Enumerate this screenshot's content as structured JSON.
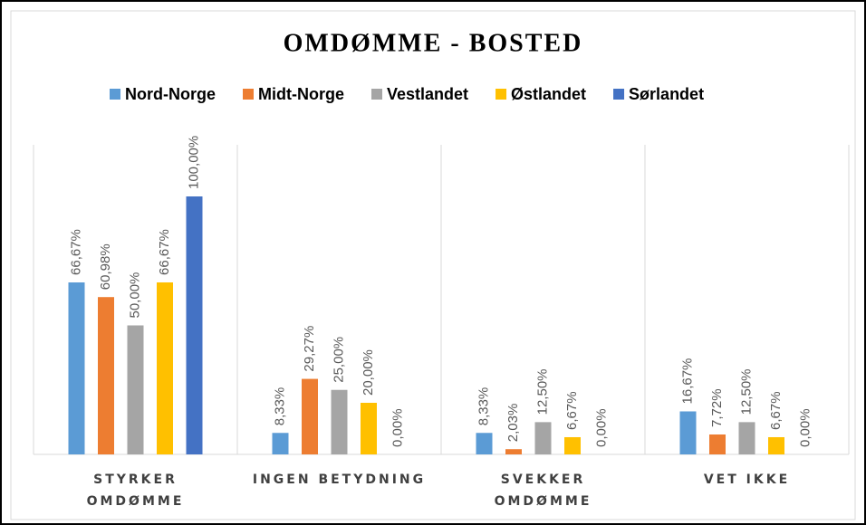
{
  "chart_data": {
    "type": "bar",
    "title": "OMDØMME - BOSTED",
    "categories": [
      "STYRKER OMDØMME",
      "INGEN BETYDNING",
      "SVEKKER OMDØMME",
      "VET IKKE"
    ],
    "series": [
      {
        "name": "Nord-Norge",
        "color": "#5b9bd5",
        "values": [
          66.67,
          8.33,
          8.33,
          16.67
        ],
        "value_labels": [
          "66,67%",
          "8,33%",
          "8,33%",
          "16,67%"
        ]
      },
      {
        "name": "Midt-Norge",
        "color": "#ed7d31",
        "values": [
          60.98,
          29.27,
          2.03,
          7.72
        ],
        "value_labels": [
          "60,98%",
          "29,27%",
          "2,03%",
          "7,72%"
        ]
      },
      {
        "name": "Vestlandet",
        "color": "#a5a5a5",
        "values": [
          50.0,
          25.0,
          12.5,
          12.5
        ],
        "value_labels": [
          "50,00%",
          "25,00%",
          "12,50%",
          "12,50%"
        ]
      },
      {
        "name": "Østlandet",
        "color": "#ffc000",
        "values": [
          66.67,
          20.0,
          6.67,
          6.67
        ],
        "value_labels": [
          "66,67%",
          "20,00%",
          "6,67%",
          "6,67%"
        ]
      },
      {
        "name": "Sørlandet",
        "color": "#4472c4",
        "values": [
          100.0,
          0.0,
          0.0,
          0.0
        ],
        "value_labels": [
          "100,00%",
          "0,00%",
          "0,00%",
          "0,00%"
        ]
      }
    ],
    "ylim": [
      0,
      120
    ],
    "legend": "top",
    "grid": false
  }
}
